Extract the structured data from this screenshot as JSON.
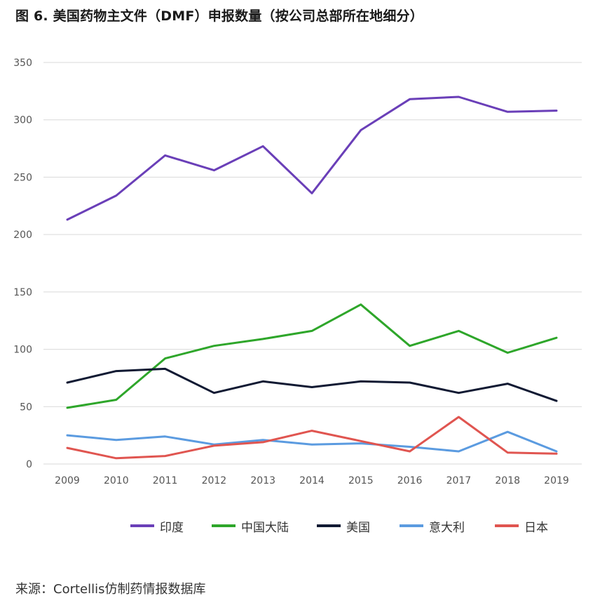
{
  "chart_data": {
    "type": "line",
    "title": "图 6. 美国药物主文件（DMF）申报数量（按公司总部所在地细分）",
    "source": "来源：Cortellis仿制药情报数据库",
    "categories": [
      "2009",
      "2010",
      "2011",
      "2012",
      "2013",
      "2014",
      "2015",
      "2016",
      "2017",
      "2018",
      "2019"
    ],
    "ylim": [
      0,
      350
    ],
    "yticks": [
      0,
      50,
      100,
      150,
      200,
      250,
      300,
      350
    ],
    "grid": true,
    "legend_position": "bottom",
    "series": [
      {
        "name": "印度",
        "color": "#6a3fb8",
        "values": [
          213,
          234,
          269,
          256,
          277,
          236,
          291,
          318,
          320,
          307,
          308
        ]
      },
      {
        "name": "中国大陆",
        "color": "#2ea62a",
        "values": [
          49,
          56,
          92,
          103,
          109,
          116,
          139,
          103,
          116,
          97,
          110
        ]
      },
      {
        "name": "美国",
        "color": "#111a33",
        "values": [
          71,
          81,
          83,
          62,
          72,
          67,
          72,
          71,
          62,
          70,
          55
        ]
      },
      {
        "name": "意大利",
        "color": "#5b9be0",
        "values": [
          25,
          21,
          24,
          17,
          21,
          17,
          18,
          15,
          11,
          28,
          11
        ]
      },
      {
        "name": "日本",
        "color": "#e05550",
        "values": [
          14,
          5,
          7,
          16,
          19,
          29,
          20,
          11,
          41,
          10,
          9
        ]
      }
    ]
  }
}
